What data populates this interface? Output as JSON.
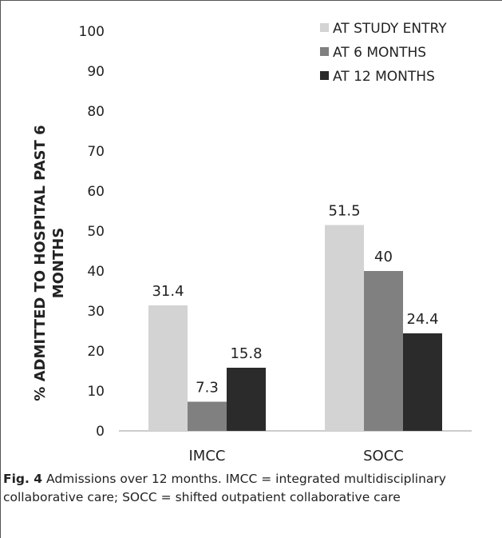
{
  "chart_data": {
    "type": "bar",
    "categories": [
      "IMCC",
      "SOCC"
    ],
    "series": [
      {
        "name": "AT STUDY ENTRY",
        "values": [
          31.4,
          51.5
        ],
        "color": "#d3d3d3"
      },
      {
        "name": "AT 6 MONTHS",
        "values": [
          7.3,
          40
        ],
        "color": "#808080"
      },
      {
        "name": "AT 12 MONTHS",
        "values": [
          15.8,
          24.4
        ],
        "color": "#2b2b2b"
      }
    ],
    "data_labels": [
      [
        "31.4",
        "51.5"
      ],
      [
        "7.3",
        "40"
      ],
      [
        "15.8",
        "24.4"
      ]
    ],
    "ylabel_lines": [
      "% ADMITTED TO HOSPITAL PAST 6",
      "MONTHS"
    ],
    "ylim": [
      0,
      100
    ],
    "yticks": [
      "0",
      "10",
      "20",
      "30",
      "40",
      "50",
      "60",
      "70",
      "80",
      "90",
      "100"
    ],
    "grid": false,
    "legend_position": "top-right"
  },
  "caption": {
    "label": "Fig. 4",
    "text": " Admissions over 12 months. IMCC = integrated multidisciplinary collaborative care; SOCC = shifted outpatient collaborative care"
  }
}
